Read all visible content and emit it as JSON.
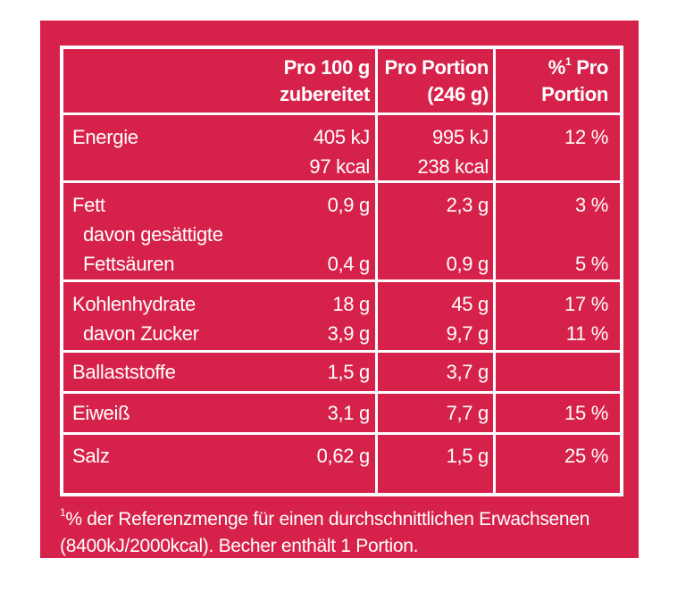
{
  "header": {
    "col1_line1": "Pro 100 g",
    "col1_line2": "zubereitet",
    "col2_line1": "Pro Portion",
    "col2_line2": "(246 g)",
    "col3_sup": "%",
    "col3_sup_mark": "1",
    "col3_line1_rest": " Pro",
    "col3_line2": "Portion"
  },
  "rows": [
    {
      "labels": [
        "Energie"
      ],
      "per100": [
        "405 kJ",
        "97 kcal"
      ],
      "portion": [
        "995 kJ",
        "238 kcal"
      ],
      "ri": [
        "12 %"
      ]
    },
    {
      "labels": [
        "Fett",
        "davon gesättigte",
        "Fettsäuren"
      ],
      "per100": [
        "0,9 g",
        "",
        "0,4 g"
      ],
      "portion": [
        "2,3 g",
        "",
        "0,9 g"
      ],
      "ri": [
        "3 %",
        "",
        "5 %"
      ]
    },
    {
      "labels": [
        "Kohlenhydrate",
        "davon Zucker"
      ],
      "per100": [
        "18 g",
        "3,9 g"
      ],
      "portion": [
        "45 g",
        "9,7 g"
      ],
      "ri": [
        "17 %",
        "11 %"
      ]
    },
    {
      "labels": [
        "Ballaststoffe"
      ],
      "per100": [
        "1,5 g"
      ],
      "portion": [
        "3,7 g"
      ],
      "ri": [
        ""
      ]
    },
    {
      "labels": [
        "Eiweiß"
      ],
      "per100": [
        "3,1 g"
      ],
      "portion": [
        "7,7 g"
      ],
      "ri": [
        "15 %"
      ]
    },
    {
      "labels": [
        "Salz"
      ],
      "per100": [
        "0,62 g"
      ],
      "portion": [
        "1,5 g"
      ],
      "ri": [
        "25 %"
      ]
    }
  ],
  "footnote": {
    "mark": "1",
    "line1": "% der Referenzmenge für einen durchschnittlichen Erwachsenen",
    "line2": "(8400kJ/2000kcal). Becher enthält 1 Portion."
  },
  "colors": {
    "background": "#d6224a",
    "text": "#ffffff",
    "page": "#ffffff"
  }
}
